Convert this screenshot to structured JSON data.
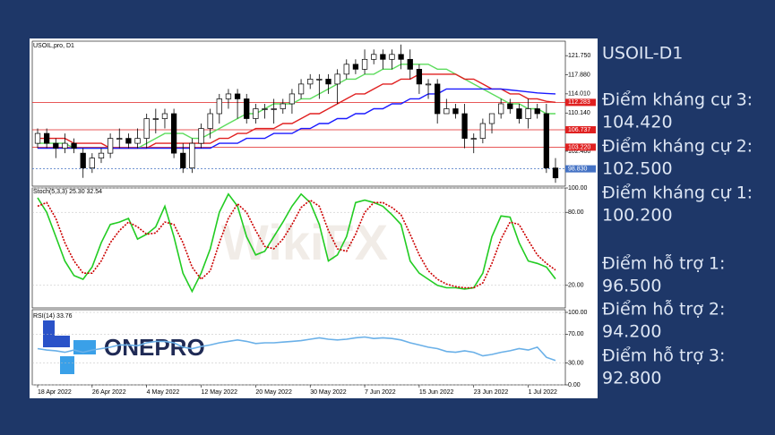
{
  "symbol_label": "USOIL,pro, D1",
  "watermark": "WikiFX",
  "logo": "ONEPRO",
  "side": {
    "title": "USOIL-D1",
    "levels": [
      {
        "name": "Điểm kháng cự 3:",
        "value": "104.420"
      },
      {
        "name": "Điểm kháng cự 2:",
        "value": "102.500"
      },
      {
        "name": "Điểm kháng cự 1:",
        "value": "100.200"
      },
      {
        "name": "Điểm hỗ trợ 1:",
        "value": "96.500"
      },
      {
        "name": "Điểm hỗ trợ 2:",
        "value": "94.200"
      },
      {
        "name": "Điểm hỗ trợ 3:",
        "value": "92.800"
      }
    ]
  },
  "chart_data": [
    {
      "type": "candlestick",
      "categories": [
        "18 Apr 2022",
        null,
        null,
        null,
        null,
        null,
        "26 Apr 2022",
        null,
        null,
        null,
        null,
        null,
        "4 May 2022",
        null,
        null,
        null,
        null,
        null,
        "12 May 2022",
        null,
        null,
        null,
        null,
        null,
        "20 May 2022",
        null,
        null,
        null,
        null,
        null,
        "30 May 2022",
        null,
        null,
        null,
        null,
        null,
        "7 Jun 2022",
        null,
        null,
        null,
        null,
        null,
        "15 Jun 2022",
        null,
        null,
        null,
        null,
        null,
        "23 Jun 2022",
        null,
        null,
        null,
        null,
        null,
        "1 Jul 2022",
        null,
        null,
        null
      ],
      "open": [
        104,
        106,
        104,
        103,
        104,
        102,
        99,
        101,
        102,
        105,
        105,
        104,
        105,
        109,
        109,
        110,
        102,
        99,
        104,
        107,
        110,
        113,
        114,
        113,
        109,
        111,
        111,
        111,
        112,
        114,
        116,
        117,
        117,
        116,
        118,
        120,
        119,
        121,
        122,
        121,
        122,
        121,
        119,
        116,
        116,
        110,
        111,
        110,
        105,
        105,
        108,
        110,
        112,
        111,
        109,
        111,
        110,
        99
      ],
      "high": [
        107,
        107,
        105,
        106,
        105,
        103,
        102,
        103,
        106,
        107,
        106,
        107,
        110,
        111,
        111,
        111,
        104,
        105,
        108,
        111,
        114,
        115,
        115,
        114,
        112,
        112,
        113,
        113,
        115,
        117,
        118,
        118,
        118,
        119,
        121,
        121,
        123,
        123,
        123,
        123,
        124,
        123,
        120,
        117,
        117,
        113,
        112,
        112,
        106,
        109,
        110,
        113,
        113,
        112,
        113,
        112,
        112,
        101
      ],
      "low": [
        103,
        103,
        101,
        102,
        102,
        97,
        98,
        100,
        101,
        103,
        103,
        103,
        103,
        106,
        107,
        101,
        98,
        98,
        103,
        105,
        108,
        111,
        109,
        108,
        108,
        109,
        108,
        110,
        110,
        113,
        115,
        113,
        114,
        112,
        117,
        118,
        118,
        120,
        119,
        119,
        119,
        117,
        114,
        113,
        108,
        110,
        109,
        103,
        102,
        104,
        106,
        109,
        110,
        108,
        107,
        109,
        98,
        96
      ],
      "close": [
        106,
        104,
        103,
        104,
        103,
        99,
        101,
        102,
        105,
        105,
        104,
        105,
        109,
        109,
        110,
        102,
        99,
        104,
        107,
        110,
        113,
        114,
        113,
        109,
        111,
        111,
        111,
        112,
        114,
        116,
        117,
        117,
        116,
        118,
        120,
        119,
        121,
        122,
        121,
        122,
        121,
        119,
        116,
        116,
        110,
        111,
        110,
        105,
        105,
        108,
        110,
        112,
        111,
        109,
        111,
        110,
        99,
        97
      ],
      "up_color": "#ffffff",
      "down_color": "#000000",
      "series": [
        {
          "color": "#5ddc5d",
          "values": [
            104,
            104,
            104,
            104,
            103,
            103,
            103,
            103,
            103,
            103,
            103,
            103,
            104,
            105,
            106,
            106,
            106,
            105,
            105,
            106,
            107,
            108,
            109,
            110,
            110,
            111,
            112,
            112,
            112,
            113,
            113,
            114,
            115,
            116,
            117,
            117,
            118,
            118,
            119,
            119,
            120,
            120,
            120,
            120,
            119,
            119,
            118,
            117,
            116,
            115,
            114,
            113,
            112,
            112,
            111,
            111,
            110,
            110
          ]
        },
        {
          "color": "#e02020",
          "values": [
            105,
            105,
            105,
            105,
            104,
            104,
            104,
            104,
            103,
            103,
            103,
            103,
            103,
            104,
            104,
            104,
            104,
            104,
            104,
            104,
            105,
            105,
            106,
            106,
            107,
            107,
            107,
            108,
            108,
            109,
            110,
            110,
            111,
            112,
            113,
            114,
            114,
            115,
            116,
            116,
            117,
            117,
            118,
            118,
            118,
            118,
            118,
            117,
            117,
            116,
            115,
            115,
            114,
            114,
            113,
            113,
            112.5,
            112.3
          ]
        },
        {
          "color": "#1a1aff",
          "values": [
            103,
            103,
            103,
            103,
            103,
            103,
            103,
            103,
            103,
            103,
            103,
            103,
            103,
            103,
            103,
            103,
            103,
            103,
            103,
            103,
            104,
            104,
            104,
            105,
            105,
            105,
            106,
            106,
            106,
            107,
            107,
            108,
            108,
            109,
            109,
            110,
            110,
            111,
            111,
            112,
            112,
            113,
            113,
            114,
            114,
            115,
            115,
            115,
            115,
            115,
            115,
            115,
            114.8,
            114.6,
            114.4,
            114.2,
            114.1,
            114
          ]
        }
      ],
      "levels": [
        {
          "value": 112.283,
          "color": "#e02020",
          "dash": false
        },
        {
          "value": 106.737,
          "color": "#e02020",
          "dash": false
        },
        {
          "value": 103.22,
          "label": "103.220",
          "color": "#e02020",
          "dash": false
        },
        {
          "value": 98.83,
          "label": "98.830",
          "color": "#4472c4",
          "dash": true
        }
      ],
      "ylim": [
        95.5,
        124.5
      ],
      "yticks": [
        {
          "value": 102.4,
          "label": "102.400"
        },
        {
          "value": 110.14,
          "label": "110.140"
        },
        {
          "value": 114.01,
          "label": "114.010"
        },
        {
          "value": 117.88,
          "label": "117.880"
        },
        {
          "value": 121.75,
          "label": "121.750"
        }
      ]
    },
    {
      "type": "line",
      "title": "Stoch(5,3,3) 25.30 32.54",
      "series": [
        {
          "color": "#22cc22",
          "values": [
            92,
            80,
            60,
            40,
            28,
            25,
            35,
            55,
            70,
            72,
            75,
            58,
            62,
            68,
            85,
            60,
            30,
            15,
            30,
            50,
            80,
            95,
            85,
            60,
            45,
            48,
            60,
            72,
            85,
            95,
            88,
            70,
            40,
            45,
            60,
            88,
            90,
            88,
            85,
            78,
            70,
            40,
            30,
            25,
            20,
            18,
            18,
            17,
            18,
            30,
            60,
            77,
            76,
            55,
            40,
            38,
            35,
            25.3
          ]
        },
        {
          "color": "#cc0000",
          "values": [
            85,
            88,
            75,
            55,
            40,
            30,
            30,
            40,
            55,
            65,
            72,
            68,
            62,
            63,
            72,
            70,
            55,
            35,
            25,
            32,
            55,
            75,
            87,
            80,
            65,
            52,
            50,
            58,
            70,
            84,
            90,
            85,
            65,
            50,
            48,
            62,
            80,
            88,
            88,
            84,
            78,
            62,
            45,
            32,
            25,
            21,
            19,
            18,
            18,
            22,
            38,
            58,
            72,
            70,
            57,
            45,
            38,
            32.54
          ]
        }
      ],
      "ylim": [
        0,
        100
      ],
      "yticks": [
        {
          "value": 20,
          "label": "20.00"
        },
        {
          "value": 80,
          "label": "80.00"
        },
        {
          "value": 100,
          "label": "100.00"
        }
      ]
    },
    {
      "type": "line",
      "title": "RSI(14) 33.76",
      "series": [
        {
          "color": "#6ab0e8",
          "values": [
            50,
            48,
            47,
            45,
            48,
            45,
            48,
            50,
            52,
            55,
            55,
            54,
            58,
            60,
            60,
            58,
            52,
            50,
            53,
            55,
            58,
            60,
            62,
            60,
            57,
            58,
            58,
            59,
            60,
            61,
            63,
            65,
            63,
            62,
            63,
            65,
            66,
            64,
            65,
            64,
            62,
            58,
            55,
            52,
            50,
            46,
            45,
            47,
            45,
            40,
            42,
            45,
            47,
            50,
            48,
            52,
            38,
            33.76
          ]
        }
      ],
      "ylim": [
        0,
        100
      ],
      "yticks": [
        {
          "value": 0,
          "label": "0.00"
        },
        {
          "value": 30,
          "label": "30.00"
        },
        {
          "value": 70,
          "label": "70.00"
        },
        {
          "value": 100,
          "label": "100.00"
        }
      ]
    }
  ]
}
